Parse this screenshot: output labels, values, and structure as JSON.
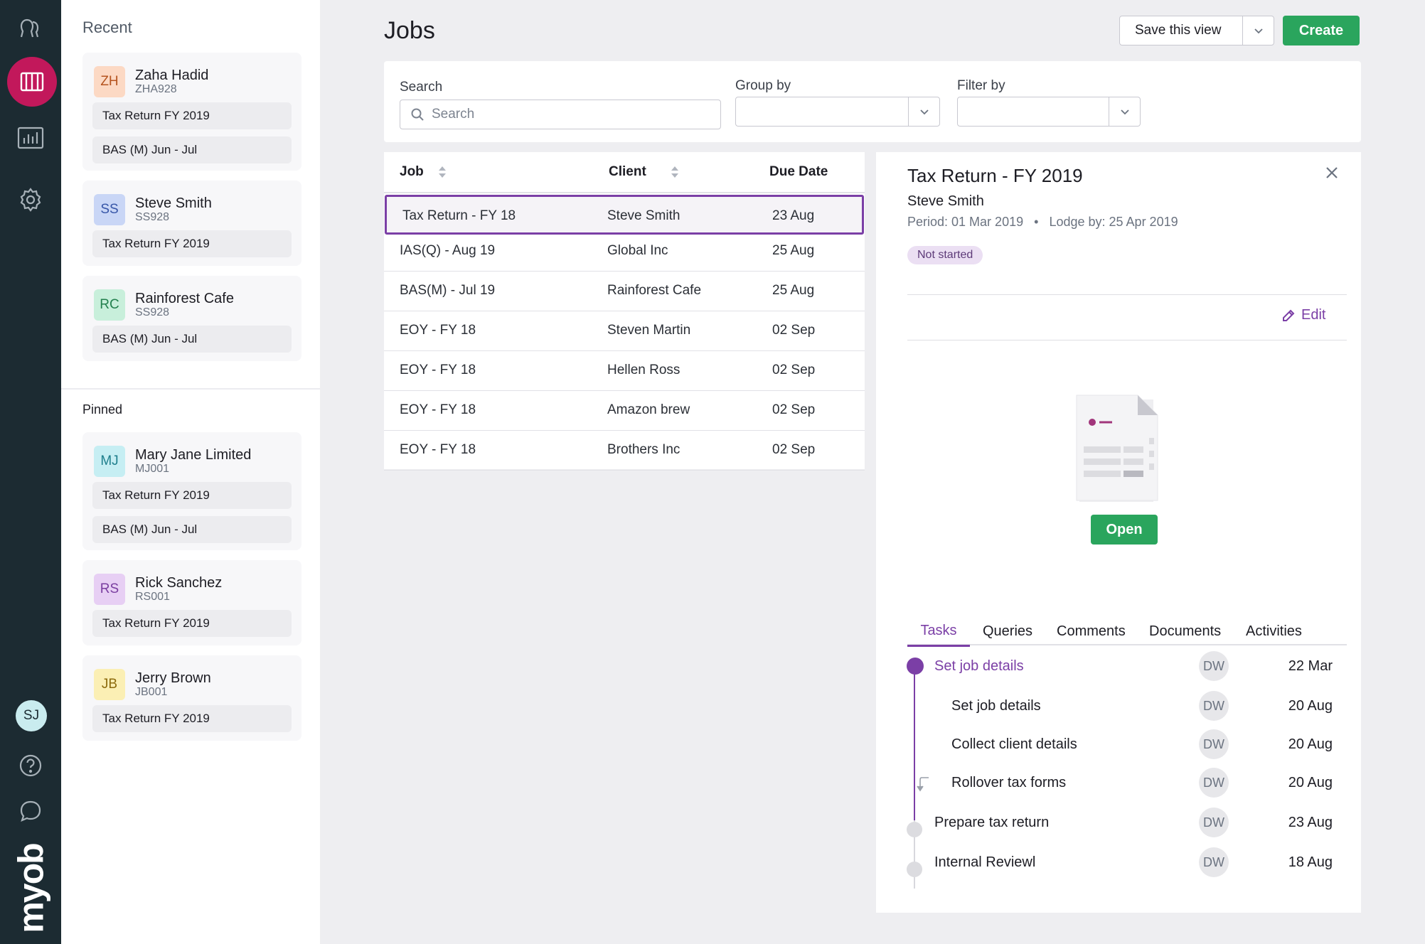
{
  "nav": {
    "user_initials": "SJ",
    "brand": "myob",
    "icons": [
      "users-icon",
      "jobs-board-icon",
      "reports-icon",
      "settings-icon",
      "help-icon",
      "chat-icon"
    ]
  },
  "sidebar": {
    "recent_title": "Recent",
    "pinned_title": "Pinned",
    "recent": [
      {
        "initials": "ZH",
        "name": "Zaha Hadid",
        "code": "ZHA928",
        "color": "#fcd9c4",
        "text": "#b5541f",
        "jobs": [
          "Tax Return FY 2019",
          "BAS (M) Jun - Jul"
        ]
      },
      {
        "initials": "SS",
        "name": "Steve Smith",
        "code": "SS928",
        "color": "#c9d6f6",
        "text": "#3756a8",
        "jobs": [
          "Tax Return FY 2019"
        ]
      },
      {
        "initials": "RC",
        "name": "Rainforest Cafe",
        "code": "SS928",
        "color": "#c8efdb",
        "text": "#23804e",
        "jobs": [
          "BAS (M) Jun - Jul"
        ]
      }
    ],
    "pinned": [
      {
        "initials": "MJ",
        "name": "Mary Jane Limited",
        "code": "MJ001",
        "color": "#c6eef3",
        "text": "#1f7f8d",
        "jobs": [
          "Tax Return FY 2019",
          "BAS (M) Jun - Jul"
        ]
      },
      {
        "initials": "RS",
        "name": "Rick Sanchez",
        "code": "RS001",
        "color": "#e7cff4",
        "text": "#7a3ea0",
        "jobs": [
          "Tax Return FY 2019"
        ]
      },
      {
        "initials": "JB",
        "name": "Jerry Brown",
        "code": "JB001",
        "color": "#fbefb4",
        "text": "#8c6a0c",
        "jobs": [
          "Tax Return FY 2019"
        ]
      }
    ]
  },
  "main": {
    "title": "Jobs",
    "save_view_label": "Save this view",
    "create_label": "Create",
    "search_label": "Search",
    "search_placeholder": "Search",
    "group_by_label": "Group by",
    "filter_by_label": "Filter by"
  },
  "table": {
    "columns": [
      "Job",
      "Client",
      "Due Date"
    ],
    "rows": [
      {
        "job": "Tax Return - FY 18",
        "client": "Steve Smith",
        "due": "23 Aug",
        "selected": true
      },
      {
        "job": "IAS(Q) - Aug 19",
        "client": "Global Inc",
        "due": "25 Aug"
      },
      {
        "job": "BAS(M) - Jul 19",
        "client": "Rainforest Cafe",
        "due": "25 Aug"
      },
      {
        "job": "EOY - FY 18",
        "client": "Steven Martin",
        "due": "02 Sep"
      },
      {
        "job": "EOY - FY 18",
        "client": "Hellen Ross",
        "due": "02 Sep"
      },
      {
        "job": "EOY - FY 18",
        "client": "Amazon brew",
        "due": "02 Sep"
      },
      {
        "job": "EOY - FY 18",
        "client": "Brothers Inc",
        "due": "02 Sep"
      }
    ]
  },
  "detail": {
    "title": "Tax Return - FY 2019",
    "client": "Steve Smith",
    "period": "Period: 01 Mar 2019",
    "lodge": "Lodge by: 25 Apr 2019",
    "status": "Not started",
    "edit_label": "Edit",
    "open_label": "Open",
    "tabs": [
      "Tasks",
      "Queries",
      "Comments",
      "Documents",
      "Activities"
    ],
    "tasks": [
      {
        "name": "Set job details",
        "assignee": "DW",
        "date": "22 Mar"
      },
      {
        "name": "Set job details",
        "assignee": "DW",
        "date": "20 Aug"
      },
      {
        "name": "Collect client details",
        "assignee": "DW",
        "date": "20 Aug"
      },
      {
        "name": "Rollover tax forms",
        "assignee": "DW",
        "date": "20 Aug"
      },
      {
        "name": "Prepare tax return",
        "assignee": "DW",
        "date": "23 Aug"
      },
      {
        "name": "Internal Reviewl",
        "assignee": "DW",
        "date": "18 Aug"
      }
    ]
  },
  "colors": {
    "rail": "#1c2b32",
    "rail_active": "#c2185b",
    "accent": "#7b3fa6",
    "primary_button": "#2aa55d"
  }
}
